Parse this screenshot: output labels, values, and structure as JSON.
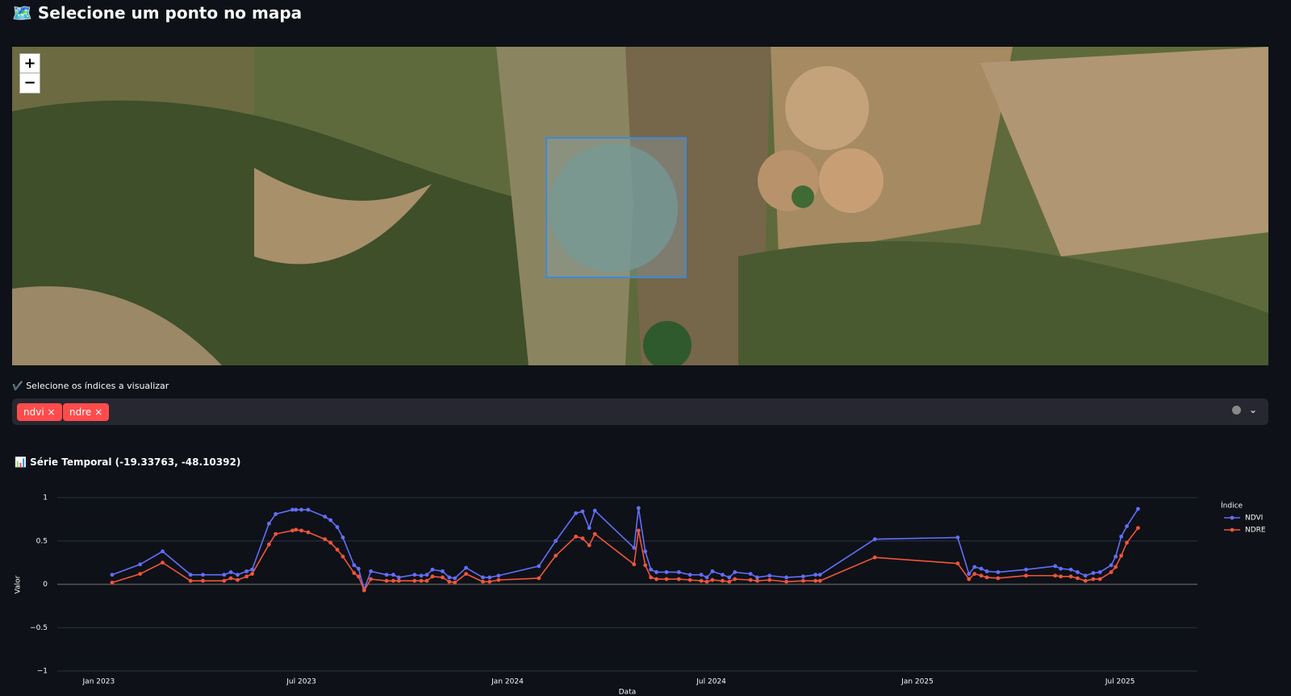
{
  "header": {
    "title": "🗺️ Selecione um ponto no mapa"
  },
  "map": {
    "zoom_in": "+",
    "zoom_out": "−"
  },
  "selector": {
    "label": "✔️ Selecione os índices a visualizar",
    "tags": [
      "ndvi",
      "ndre"
    ]
  },
  "subheader": "📊 Série Temporal (-19.33763, -48.10392)",
  "chart_data": {
    "type": "line",
    "x_label": "Data",
    "y_label": "Valor",
    "legend_title": "Índice",
    "legend": "right",
    "grid": true,
    "x": [
      "2023-01-13",
      "2023-02-07",
      "2023-02-27",
      "2023-03-24",
      "2023-04-04",
      "2023-04-23",
      "2023-04-29",
      "2023-05-05",
      "2023-05-13",
      "2023-05-18",
      "2023-06-02",
      "2023-06-08",
      "2023-06-23",
      "2023-06-26",
      "2023-07-01",
      "2023-07-07",
      "2023-07-22",
      "2023-07-27",
      "2023-08-02",
      "2023-08-07",
      "2023-08-17",
      "2023-08-21",
      "2023-08-26",
      "2023-09-01",
      "2023-09-15",
      "2023-09-21",
      "2023-09-26",
      "2023-10-10",
      "2023-10-16",
      "2023-10-21",
      "2023-10-26",
      "2023-11-04",
      "2023-11-10",
      "2023-11-15",
      "2023-11-25",
      "2023-12-10",
      "2023-12-16",
      "2023-12-24",
      "2024-01-29",
      "2024-02-13",
      "2024-03-02",
      "2024-03-08",
      "2024-03-14",
      "2024-03-19",
      "2024-04-23",
      "2024-04-27",
      "2024-05-03",
      "2024-05-08",
      "2024-05-13",
      "2024-05-22",
      "2024-06-02",
      "2024-06-12",
      "2024-06-22",
      "2024-06-27",
      "2024-07-02",
      "2024-07-11",
      "2024-07-17",
      "2024-07-22",
      "2024-08-05",
      "2024-08-11",
      "2024-08-22",
      "2024-09-06",
      "2024-09-21",
      "2024-10-02",
      "2024-10-06",
      "2024-11-24",
      "2025-02-06",
      "2025-02-16",
      "2025-02-21",
      "2025-02-27",
      "2025-03-04",
      "2025-03-14",
      "2025-04-08",
      "2025-05-04",
      "2025-05-09",
      "2025-05-18",
      "2025-05-24",
      "2025-05-31",
      "2025-06-07",
      "2025-06-13",
      "2025-06-23",
      "2025-06-27",
      "2025-07-02",
      "2025-07-07",
      "2025-07-17"
    ],
    "series": [
      {
        "name": "NDVI",
        "color": "#636efa",
        "values": [
          0.11,
          0.23,
          0.38,
          0.11,
          0.11,
          0.11,
          0.14,
          0.11,
          0.15,
          0.17,
          0.7,
          0.81,
          0.86,
          0.86,
          0.86,
          0.86,
          0.78,
          0.74,
          0.66,
          0.54,
          0.22,
          0.18,
          -0.06,
          0.15,
          0.11,
          0.11,
          0.08,
          0.11,
          0.1,
          0.11,
          0.17,
          0.15,
          0.08,
          0.07,
          0.19,
          0.08,
          0.08,
          0.1,
          0.21,
          0.5,
          0.82,
          0.84,
          0.65,
          0.85,
          0.42,
          0.88,
          0.38,
          0.17,
          0.14,
          0.14,
          0.14,
          0.11,
          0.11,
          0.08,
          0.15,
          0.11,
          0.08,
          0.14,
          0.12,
          0.08,
          0.1,
          0.08,
          0.09,
          0.11,
          0.11,
          0.52,
          0.54,
          0.12,
          0.2,
          0.18,
          0.15,
          0.14,
          0.17,
          0.21,
          0.18,
          0.17,
          0.14,
          0.1,
          0.13,
          0.14,
          0.22,
          0.32,
          0.55,
          0.67,
          0.87
        ]
      },
      {
        "name": "NDRE",
        "color": "#ef553b",
        "values": [
          0.02,
          0.12,
          0.25,
          0.04,
          0.04,
          0.04,
          0.07,
          0.05,
          0.09,
          0.12,
          0.46,
          0.58,
          0.62,
          0.63,
          0.62,
          0.6,
          0.52,
          0.48,
          0.4,
          0.32,
          0.13,
          0.09,
          -0.07,
          0.06,
          0.04,
          0.04,
          0.04,
          0.04,
          0.04,
          0.04,
          0.09,
          0.08,
          0.03,
          0.02,
          0.12,
          0.03,
          0.03,
          0.05,
          0.07,
          0.33,
          0.55,
          0.53,
          0.45,
          0.58,
          0.23,
          0.62,
          0.22,
          0.08,
          0.06,
          0.06,
          0.06,
          0.05,
          0.04,
          0.03,
          0.05,
          0.04,
          0.03,
          0.06,
          0.05,
          0.04,
          0.05,
          0.03,
          0.04,
          0.04,
          0.04,
          0.31,
          0.24,
          0.06,
          0.12,
          0.1,
          0.08,
          0.07,
          0.1,
          0.1,
          0.09,
          0.09,
          0.07,
          0.04,
          0.06,
          0.06,
          0.14,
          0.2,
          0.33,
          0.48,
          0.65
        ]
      }
    ],
    "xlim": [
      "2022-11-25",
      "2025-09-08"
    ],
    "xticks": [
      {
        "value": "2023-01-01",
        "label": "Jan 2023"
      },
      {
        "value": "2023-07-01",
        "label": "Jul 2023"
      },
      {
        "value": "2024-01-01",
        "label": "Jan 2024"
      },
      {
        "value": "2024-07-01",
        "label": "Jul 2024"
      },
      {
        "value": "2025-01-01",
        "label": "Jan 2025"
      },
      {
        "value": "2025-07-01",
        "label": "Jul 2025"
      }
    ],
    "ylim": [
      -1,
      1
    ],
    "yticks": [
      {
        "value": -1,
        "label": "−1"
      },
      {
        "value": -0.5,
        "label": "−0.5"
      },
      0,
      0.5,
      1
    ]
  }
}
